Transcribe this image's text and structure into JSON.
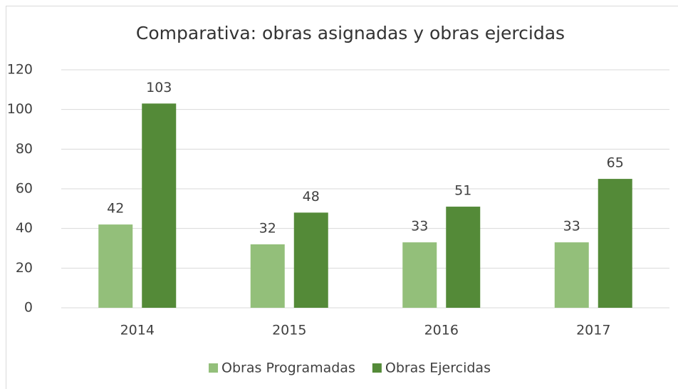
{
  "chart_data": {
    "type": "bar",
    "title": "Comparativa: obras asignadas y obras ejercidas",
    "categories": [
      "2014",
      "2015",
      "2016",
      "2017"
    ],
    "series": [
      {
        "name": "Obras Programadas",
        "color": "#93bf7a",
        "values": [
          42,
          32,
          33,
          33
        ]
      },
      {
        "name": "Obras Ejercidas",
        "color": "#548a38",
        "values": [
          103,
          48,
          51,
          65
        ]
      }
    ],
    "ylim": [
      0,
      120
    ],
    "yticks": [
      0,
      20,
      40,
      60,
      80,
      100,
      120
    ],
    "grid": true,
    "legend": "bottom",
    "data_labels": true
  }
}
